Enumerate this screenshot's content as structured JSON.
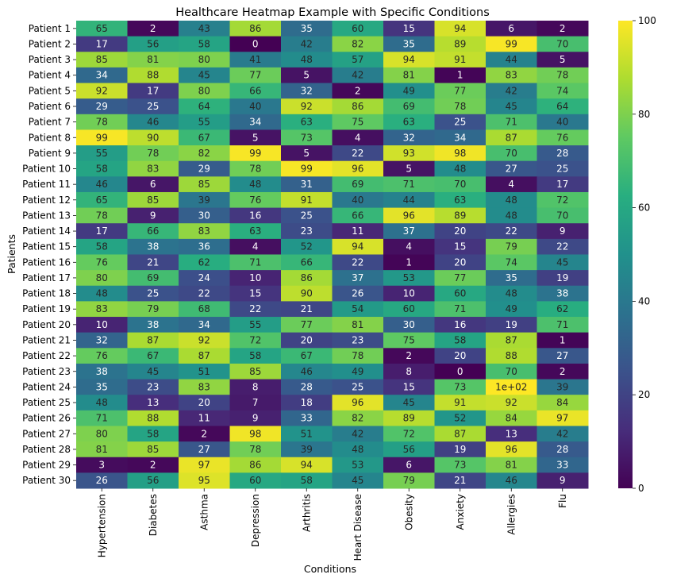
{
  "chart_data": {
    "type": "heatmap",
    "title": "Healthcare Heatmap Example with Specific Conditions",
    "xlabel": "Conditions",
    "ylabel": "Patients",
    "colormap": "viridis",
    "colorbar": {
      "min": 0,
      "max": 100,
      "ticks": [
        0,
        20,
        40,
        60,
        80,
        100
      ]
    },
    "x_categories": [
      "Hypertension",
      "Diabetes",
      "Asthma",
      "Depression",
      "Arthritis",
      "Heart Disease",
      "Obesity",
      "Anxiety",
      "Allergies",
      "Flu"
    ],
    "y_categories": [
      "Patient 1",
      "Patient 2",
      "Patient 3",
      "Patient 4",
      "Patient 5",
      "Patient 6",
      "Patient 7",
      "Patient 8",
      "Patient 9",
      "Patient 10",
      "Patient 11",
      "Patient 12",
      "Patient 13",
      "Patient 14",
      "Patient 15",
      "Patient 16",
      "Patient 17",
      "Patient 18",
      "Patient 19",
      "Patient 20",
      "Patient 21",
      "Patient 22",
      "Patient 23",
      "Patient 24",
      "Patient 25",
      "Patient 26",
      "Patient 27",
      "Patient 28",
      "Patient 29",
      "Patient 30"
    ],
    "values": [
      [
        65,
        2,
        43,
        86,
        35,
        60,
        15,
        94,
        6,
        2
      ],
      [
        17,
        56,
        58,
        0,
        42,
        82,
        35,
        89,
        99,
        70
      ],
      [
        85,
        81,
        80,
        41,
        48,
        57,
        94,
        91,
        44,
        5
      ],
      [
        34,
        88,
        45,
        77,
        5,
        42,
        81,
        1,
        83,
        78
      ],
      [
        92,
        17,
        80,
        66,
        32,
        2,
        49,
        77,
        42,
        74
      ],
      [
        29,
        25,
        64,
        40,
        92,
        86,
        69,
        78,
        45,
        64
      ],
      [
        78,
        46,
        55,
        34,
        63,
        75,
        63,
        25,
        71,
        40
      ],
      [
        99,
        90,
        67,
        5,
        73,
        4,
        32,
        34,
        87,
        76
      ],
      [
        55,
        78,
        82,
        99,
        5,
        22,
        93,
        98,
        70,
        28
      ],
      [
        58,
        83,
        29,
        78,
        99,
        96,
        5,
        48,
        27,
        25
      ],
      [
        46,
        6,
        85,
        48,
        31,
        69,
        71,
        70,
        4,
        17
      ],
      [
        65,
        85,
        39,
        76,
        91,
        40,
        44,
        63,
        48,
        72
      ],
      [
        78,
        9,
        30,
        16,
        25,
        66,
        96,
        89,
        48,
        70
      ],
      [
        17,
        66,
        83,
        63,
        23,
        11,
        37,
        20,
        22,
        9
      ],
      [
        58,
        38,
        36,
        4,
        52,
        94,
        4,
        15,
        79,
        22
      ],
      [
        76,
        21,
        62,
        71,
        66,
        22,
        1,
        20,
        74,
        45
      ],
      [
        80,
        69,
        24,
        10,
        86,
        37,
        53,
        77,
        35,
        19
      ],
      [
        48,
        25,
        22,
        15,
        90,
        26,
        10,
        60,
        48,
        38
      ],
      [
        83,
        79,
        68,
        22,
        21,
        54,
        60,
        71,
        49,
        62
      ],
      [
        10,
        38,
        34,
        55,
        77,
        81,
        30,
        16,
        19,
        71
      ],
      [
        32,
        87,
        92,
        72,
        20,
        23,
        75,
        58,
        87,
        1
      ],
      [
        76,
        67,
        87,
        58,
        67,
        78,
        2,
        20,
        88,
        27
      ],
      [
        38,
        45,
        51,
        85,
        46,
        49,
        8,
        0,
        70,
        2
      ],
      [
        35,
        23,
        83,
        8,
        28,
        25,
        15,
        73,
        100,
        39
      ],
      [
        48,
        13,
        20,
        7,
        18,
        96,
        45,
        91,
        92,
        84
      ],
      [
        71,
        88,
        11,
        9,
        33,
        82,
        89,
        52,
        84,
        97
      ],
      [
        80,
        58,
        2,
        98,
        51,
        42,
        72,
        87,
        13,
        42
      ],
      [
        81,
        85,
        27,
        78,
        39,
        48,
        56,
        19,
        96,
        28
      ],
      [
        3,
        2,
        97,
        86,
        94,
        53,
        6,
        73,
        81,
        33
      ],
      [
        26,
        56,
        95,
        60,
        58,
        45,
        79,
        21,
        46,
        9
      ]
    ],
    "annotations": [
      [
        "65",
        "2",
        "43",
        "86",
        "35",
        "60",
        "15",
        "94",
        "6",
        "2"
      ],
      [
        "17",
        "56",
        "58",
        "0",
        "42",
        "82",
        "35",
        "89",
        "99",
        "70"
      ],
      [
        "85",
        "81",
        "80",
        "41",
        "48",
        "57",
        "94",
        "91",
        "44",
        "5"
      ],
      [
        "34",
        "88",
        "45",
        "77",
        "5",
        "42",
        "81",
        "1",
        "83",
        "78"
      ],
      [
        "92",
        "17",
        "80",
        "66",
        "32",
        "2",
        "49",
        "77",
        "42",
        "74"
      ],
      [
        "29",
        "25",
        "64",
        "40",
        "92",
        "86",
        "69",
        "78",
        "45",
        "64"
      ],
      [
        "78",
        "46",
        "55",
        "34",
        "63",
        "75",
        "63",
        "25",
        "71",
        "40"
      ],
      [
        "99",
        "90",
        "67",
        "5",
        "73",
        "4",
        "32",
        "34",
        "87",
        "76"
      ],
      [
        "55",
        "78",
        "82",
        "99",
        "5",
        "22",
        "93",
        "98",
        "70",
        "28"
      ],
      [
        "58",
        "83",
        "29",
        "78",
        "99",
        "96",
        "5",
        "48",
        "27",
        "25"
      ],
      [
        "46",
        "6",
        "85",
        "48",
        "31",
        "69",
        "71",
        "70",
        "4",
        "17"
      ],
      [
        "65",
        "85",
        "39",
        "76",
        "91",
        "40",
        "44",
        "63",
        "48",
        "72"
      ],
      [
        "78",
        "9",
        "30",
        "16",
        "25",
        "66",
        "96",
        "89",
        "48",
        "70"
      ],
      [
        "17",
        "66",
        "83",
        "63",
        "23",
        "11",
        "37",
        "20",
        "22",
        "9"
      ],
      [
        "58",
        "38",
        "36",
        "4",
        "52",
        "94",
        "4",
        "15",
        "79",
        "22"
      ],
      [
        "76",
        "21",
        "62",
        "71",
        "66",
        "22",
        "1",
        "20",
        "74",
        "45"
      ],
      [
        "80",
        "69",
        "24",
        "10",
        "86",
        "37",
        "53",
        "77",
        "35",
        "19"
      ],
      [
        "48",
        "25",
        "22",
        "15",
        "90",
        "26",
        "10",
        "60",
        "48",
        "38"
      ],
      [
        "83",
        "79",
        "68",
        "22",
        "21",
        "54",
        "60",
        "71",
        "49",
        "62"
      ],
      [
        "10",
        "38",
        "34",
        "55",
        "77",
        "81",
        "30",
        "16",
        "19",
        "71"
      ],
      [
        "32",
        "87",
        "92",
        "72",
        "20",
        "23",
        "75",
        "58",
        "87",
        "1"
      ],
      [
        "76",
        "67",
        "87",
        "58",
        "67",
        "78",
        "2",
        "20",
        "88",
        "27"
      ],
      [
        "38",
        "45",
        "51",
        "85",
        "46",
        "49",
        "8",
        "0",
        "70",
        "2"
      ],
      [
        "35",
        "23",
        "83",
        "8",
        "28",
        "25",
        "15",
        "73",
        "1e+02",
        "39"
      ],
      [
        "48",
        "13",
        "20",
        "7",
        "18",
        "96",
        "45",
        "91",
        "92",
        "84"
      ],
      [
        "71",
        "88",
        "11",
        "9",
        "33",
        "82",
        "89",
        "52",
        "84",
        "97"
      ],
      [
        "80",
        "58",
        "2",
        "98",
        "51",
        "42",
        "72",
        "87",
        "13",
        "42"
      ],
      [
        "81",
        "85",
        "27",
        "78",
        "39",
        "48",
        "56",
        "19",
        "96",
        "28"
      ],
      [
        "3",
        "2",
        "97",
        "86",
        "94",
        "53",
        "6",
        "73",
        "81",
        "33"
      ],
      [
        "26",
        "56",
        "95",
        "60",
        "58",
        "45",
        "79",
        "21",
        "46",
        "9"
      ]
    ]
  }
}
